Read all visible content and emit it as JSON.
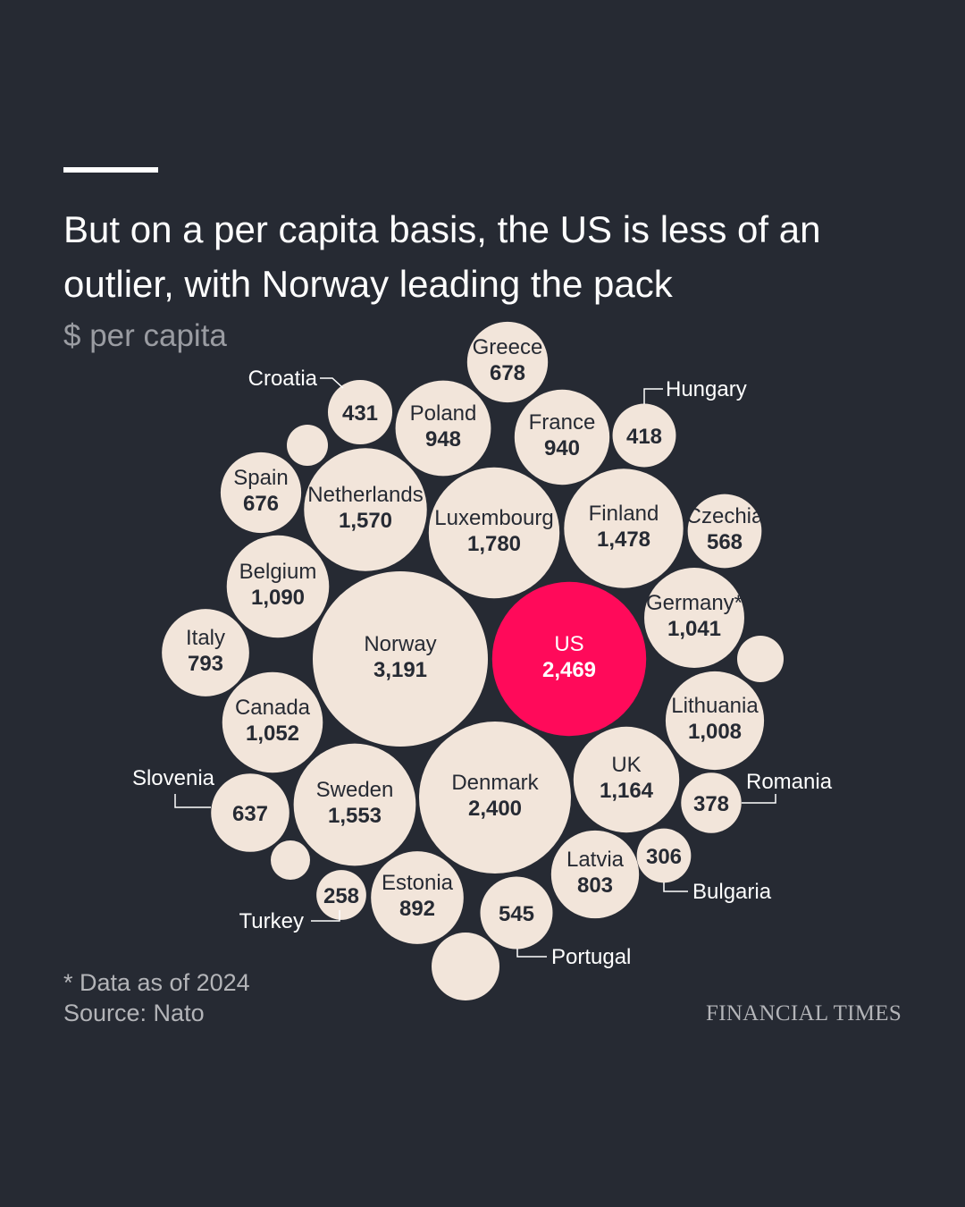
{
  "title": "But on a per capita basis, the US is less of an outlier, with Norway leading the pack",
  "subtitle": "$ per capita",
  "footnote": "* Data as of 2024",
  "source": "Source: Nato",
  "logo": "FINANCIAL TIMES",
  "colors": {
    "background": "#262a33",
    "bubble": "#f2e5da",
    "highlight": "#ff0a5a"
  },
  "chart_data": {
    "type": "bubble",
    "title": "But on a per capita basis, the US is less of an outlier, with Norway leading the pack",
    "unit": "$ per capita",
    "points": [
      {
        "name": "Norway",
        "value": 3191,
        "display": "3,191"
      },
      {
        "name": "US",
        "value": 2469,
        "display": "2,469",
        "highlight": true
      },
      {
        "name": "Denmark",
        "value": 2400,
        "display": "2,400"
      },
      {
        "name": "Luxembourg",
        "value": 1780,
        "display": "1,780"
      },
      {
        "name": "Netherlands",
        "value": 1570,
        "display": "1,570"
      },
      {
        "name": "Sweden",
        "value": 1553,
        "display": "1,553"
      },
      {
        "name": "Finland",
        "value": 1478,
        "display": "1,478"
      },
      {
        "name": "UK",
        "value": 1164,
        "display": "1,164"
      },
      {
        "name": "Belgium",
        "value": 1090,
        "display": "1,090"
      },
      {
        "name": "Canada",
        "value": 1052,
        "display": "1,052"
      },
      {
        "name": "Germany*",
        "value": 1041,
        "display": "1,041"
      },
      {
        "name": "Lithuania",
        "value": 1008,
        "display": "1,008"
      },
      {
        "name": "Poland",
        "value": 948,
        "display": "948"
      },
      {
        "name": "France",
        "value": 940,
        "display": "940"
      },
      {
        "name": "Estonia",
        "value": 892,
        "display": "892"
      },
      {
        "name": "Latvia",
        "value": 803,
        "display": "803"
      },
      {
        "name": "Italy",
        "value": 793,
        "display": "793"
      },
      {
        "name": "Greece",
        "value": 678,
        "display": "678"
      },
      {
        "name": "Spain",
        "value": 676,
        "display": "676"
      },
      {
        "name": "Slovenia",
        "value": 637,
        "display": "637",
        "external": true
      },
      {
        "name": "Czechia",
        "value": 568,
        "display": "568"
      },
      {
        "name": "Portugal",
        "value": 545,
        "display": "545",
        "external": true
      },
      {
        "name": "Croatia",
        "value": 431,
        "display": "431",
        "external": true
      },
      {
        "name": "Hungary",
        "value": 418,
        "display": "418",
        "external": true
      },
      {
        "name": "Romania",
        "value": 378,
        "display": "378",
        "external": true
      },
      {
        "name": "Bulgaria",
        "value": 306,
        "display": "306",
        "external": true
      },
      {
        "name": "Turkey",
        "value": 258,
        "display": "258",
        "external": true
      }
    ]
  }
}
